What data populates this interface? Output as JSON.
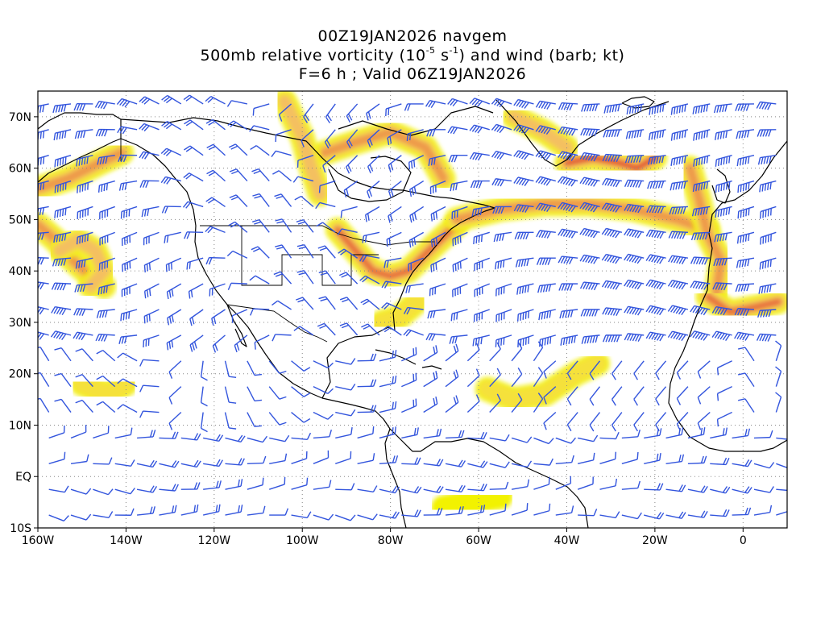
{
  "header": {
    "line1": "00Z19JAN2026 navgem",
    "line2_prefix": "500mb relative vorticity (10",
    "line2_exp1": "-5",
    "line2_mid": " s",
    "line2_exp2": "-1",
    "line2_suffix": ") and wind (barb; kt)",
    "line3": "F=6 h ; Valid 06Z19JAN2026"
  },
  "map": {
    "projection": "cylindrical-equidistant",
    "lon_range": [
      -160,
      10
    ],
    "lat_range": [
      -10,
      75
    ],
    "lon_ticks": [
      "160W",
      "140W",
      "120W",
      "100W",
      "80W",
      "60W",
      "40W",
      "20W",
      "0"
    ],
    "lat_ticks": [
      "70N",
      "60N",
      "50N",
      "40N",
      "30N",
      "20N",
      "10N",
      "EQ",
      "10S"
    ],
    "colors": {
      "barb": "#3355dd",
      "coast": "#000000",
      "grid": "#888888",
      "vort_levels": [
        "#f2f200",
        "#f5e13a",
        "#f4c060",
        "#ee9a4a",
        "#e66a3a",
        "#db3a30",
        "#cc2266"
      ]
    },
    "vorticity_bands": [
      {
        "name": "alaska-gulf",
        "pts": [
          [
            -160,
            56
          ],
          [
            -153,
            58
          ],
          [
            -146,
            61
          ],
          [
            -141,
            63
          ]
        ],
        "level": 3
      },
      {
        "name": "ne-pacific-swirl",
        "pts": [
          [
            -160,
            49
          ],
          [
            -156,
            46
          ],
          [
            -152,
            42
          ],
          [
            -148,
            39
          ],
          [
            -145,
            37
          ]
        ],
        "level": 3
      },
      {
        "name": "ne-pacific-ring",
        "pts": [
          [
            -155,
            44
          ],
          [
            -151,
            46
          ],
          [
            -147,
            44
          ],
          [
            -145,
            40
          ],
          [
            -148,
            37
          ]
        ],
        "level": 2
      },
      {
        "name": "ca-canada-arc",
        "pts": [
          [
            -95,
            63
          ],
          [
            -88,
            65
          ],
          [
            -80,
            67
          ],
          [
            -72,
            64
          ],
          [
            -68,
            58
          ]
        ],
        "level": 3
      },
      {
        "name": "hudson-north",
        "pts": [
          [
            -104,
            73
          ],
          [
            -100,
            66
          ],
          [
            -98,
            60
          ],
          [
            -96,
            55
          ]
        ],
        "level": 2
      },
      {
        "name": "great-lakes",
        "pts": [
          [
            -92,
            48
          ],
          [
            -88,
            44
          ],
          [
            -84,
            40
          ],
          [
            -80,
            39
          ],
          [
            -76,
            40
          ],
          [
            -70,
            45
          ],
          [
            -65,
            49
          ]
        ],
        "level": 4
      },
      {
        "name": "atlantic-jet",
        "pts": [
          [
            -65,
            50
          ],
          [
            -55,
            52
          ],
          [
            -45,
            53
          ],
          [
            -35,
            53
          ],
          [
            -25,
            52
          ],
          [
            -15,
            50
          ],
          [
            -8,
            48
          ]
        ],
        "level": 3
      },
      {
        "name": "greenland-low",
        "pts": [
          [
            -40,
            61
          ],
          [
            -34,
            62
          ],
          [
            -28,
            61
          ],
          [
            -24,
            60
          ],
          [
            -20,
            62
          ]
        ],
        "level": 5
      },
      {
        "name": "greenland-east",
        "pts": [
          [
            -52,
            70
          ],
          [
            -45,
            67
          ],
          [
            -40,
            64
          ]
        ],
        "level": 2
      },
      {
        "name": "iberia-w",
        "pts": [
          [
            -12,
            60
          ],
          [
            -10,
            54
          ],
          [
            -8,
            47
          ],
          [
            -5,
            42
          ],
          [
            -6,
            36
          ]
        ],
        "level": 3
      },
      {
        "name": "sw-europe",
        "pts": [
          [
            -8,
            35
          ],
          [
            -3,
            32
          ],
          [
            3,
            33
          ],
          [
            8,
            34
          ]
        ],
        "level": 4
      },
      {
        "name": "subtrop-atl",
        "pts": [
          [
            -58,
            17
          ],
          [
            -52,
            15
          ],
          [
            -45,
            16
          ],
          [
            -38,
            20
          ],
          [
            -33,
            22
          ]
        ],
        "level": 1
      },
      {
        "name": "west-atl-yellow",
        "pts": [
          [
            -68,
            -6
          ],
          [
            -62,
            -5
          ],
          [
            -55,
            -4
          ]
        ],
        "level": 0
      },
      {
        "name": "east-pac-yellow",
        "pts": [
          [
            -150,
            18
          ],
          [
            -144,
            16
          ],
          [
            -140,
            18
          ]
        ],
        "level": 1
      },
      {
        "name": "gulf-stream",
        "pts": [
          [
            -82,
            30
          ],
          [
            -78,
            31
          ],
          [
            -74,
            34
          ]
        ],
        "level": 1
      }
    ],
    "barb_field": {
      "lon_step": 5,
      "lat_step": 5
    }
  }
}
